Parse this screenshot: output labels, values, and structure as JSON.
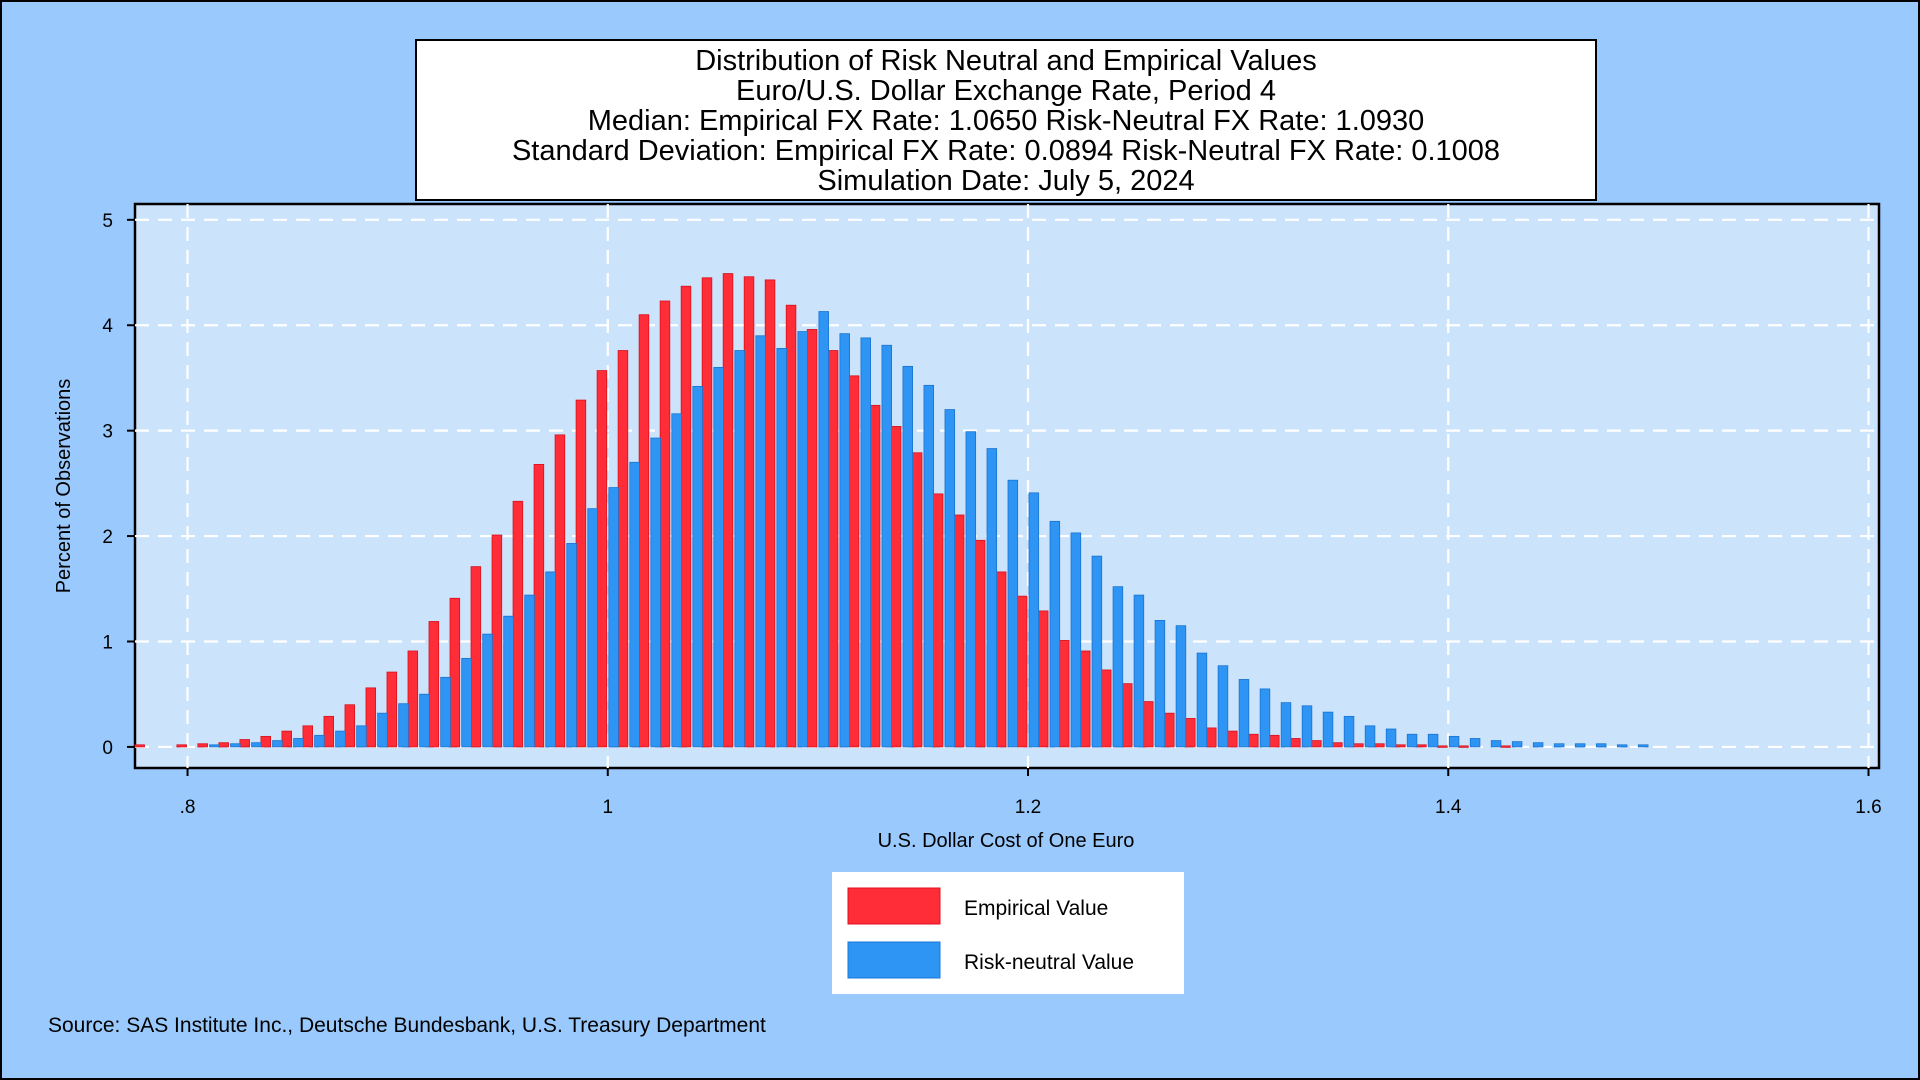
{
  "title_lines": [
    "Distribution of Risk Neutral and Empirical Values",
    "Euro/U.S. Dollar Exchange Rate, Period 4",
    "Median: Empirical FX Rate:  1.0650   Risk-Neutral FX Rate:  1.0930",
    "Standard Deviation: Empirical FX Rate:  0.0894   Risk-Neutral FX Rate:  0.1008",
    "Simulation Date: July 5, 2024"
  ],
  "source": "Source: SAS Institute Inc., Deutsche Bundesbank, U.S. Treasury Department",
  "colors": {
    "background": "#99c9fd",
    "plot_area": "#cce4fb",
    "empirical": "#ff2d37",
    "risk_neutral": "#2f95f5",
    "grid": "#ffffff"
  },
  "chart_data": {
    "type": "bar",
    "xlabel": "U.S. Dollar Cost of One Euro",
    "ylabel": "Percent of Observations",
    "xlim": [
      0.775,
      1.605
    ],
    "ylim": [
      -0.2,
      5.15
    ],
    "x_ticks": [
      0.8,
      1.0,
      1.2,
      1.4,
      1.6
    ],
    "x_tick_labels": [
      ".8",
      "1",
      "1.2",
      "1.4",
      "1.6"
    ],
    "y_ticks": [
      0,
      1,
      2,
      3,
      4,
      5
    ],
    "y_tick_labels": [
      "0",
      "1",
      "2",
      "3",
      "4",
      "5"
    ],
    "grid": true,
    "legend_position": "bottom-center",
    "series": [
      {
        "name": "Empirical Value",
        "x": [
          0.78,
          0.8,
          0.81,
          0.82,
          0.83,
          0.84,
          0.85,
          0.86,
          0.87,
          0.88,
          0.89,
          0.9,
          0.91,
          0.92,
          0.93,
          0.94,
          0.95,
          0.96,
          0.97,
          0.98,
          0.99,
          1.0,
          1.01,
          1.02,
          1.03,
          1.04,
          1.05,
          1.06,
          1.07,
          1.08,
          1.09,
          1.1,
          1.11,
          1.12,
          1.13,
          1.14,
          1.15,
          1.16,
          1.17,
          1.18,
          1.19,
          1.2,
          1.21,
          1.22,
          1.23,
          1.24,
          1.25,
          1.26,
          1.27,
          1.28,
          1.29,
          1.3,
          1.31,
          1.32,
          1.33,
          1.34,
          1.35,
          1.36,
          1.37,
          1.38,
          1.39,
          1.4,
          1.41,
          1.43
        ],
        "values": [
          0.02,
          0.02,
          0.03,
          0.04,
          0.07,
          0.1,
          0.15,
          0.2,
          0.29,
          0.4,
          0.56,
          0.71,
          0.91,
          1.19,
          1.41,
          1.71,
          2.01,
          2.33,
          2.68,
          2.96,
          3.29,
          3.57,
          3.76,
          4.1,
          4.23,
          4.37,
          4.45,
          4.49,
          4.46,
          4.43,
          4.19,
          3.96,
          3.76,
          3.52,
          3.24,
          3.04,
          2.79,
          2.4,
          2.2,
          1.96,
          1.66,
          1.43,
          1.29,
          1.01,
          0.91,
          0.73,
          0.6,
          0.43,
          0.32,
          0.27,
          0.18,
          0.15,
          0.12,
          0.11,
          0.08,
          0.06,
          0.04,
          0.03,
          0.03,
          0.02,
          0.02,
          0.01,
          0.01,
          0.01
        ]
      },
      {
        "name": "Risk-neutral Value",
        "x": [
          0.81,
          0.82,
          0.83,
          0.84,
          0.85,
          0.86,
          0.87,
          0.88,
          0.89,
          0.9,
          0.91,
          0.92,
          0.93,
          0.94,
          0.95,
          0.96,
          0.97,
          0.98,
          0.99,
          1.0,
          1.01,
          1.02,
          1.03,
          1.04,
          1.05,
          1.06,
          1.07,
          1.08,
          1.09,
          1.1,
          1.11,
          1.12,
          1.13,
          1.14,
          1.15,
          1.16,
          1.17,
          1.18,
          1.19,
          1.2,
          1.21,
          1.22,
          1.23,
          1.24,
          1.25,
          1.26,
          1.27,
          1.28,
          1.29,
          1.3,
          1.31,
          1.32,
          1.33,
          1.34,
          1.35,
          1.36,
          1.37,
          1.38,
          1.39,
          1.4,
          1.41,
          1.42,
          1.43,
          1.44,
          1.45,
          1.46,
          1.47,
          1.48,
          1.49
        ],
        "values": [
          0.02,
          0.03,
          0.04,
          0.06,
          0.08,
          0.11,
          0.15,
          0.2,
          0.32,
          0.41,
          0.5,
          0.66,
          0.84,
          1.07,
          1.24,
          1.44,
          1.66,
          1.93,
          2.26,
          2.46,
          2.7,
          2.93,
          3.16,
          3.42,
          3.6,
          3.76,
          3.9,
          3.78,
          3.94,
          4.13,
          3.92,
          3.88,
          3.81,
          3.61,
          3.43,
          3.2,
          2.99,
          2.83,
          2.53,
          2.41,
          2.14,
          2.03,
          1.81,
          1.52,
          1.44,
          1.2,
          1.15,
          0.89,
          0.77,
          0.64,
          0.55,
          0.42,
          0.39,
          0.33,
          0.29,
          0.2,
          0.17,
          0.12,
          0.12,
          0.1,
          0.08,
          0.06,
          0.05,
          0.04,
          0.03,
          0.03,
          0.03,
          0.02,
          0.02
        ]
      }
    ]
  }
}
